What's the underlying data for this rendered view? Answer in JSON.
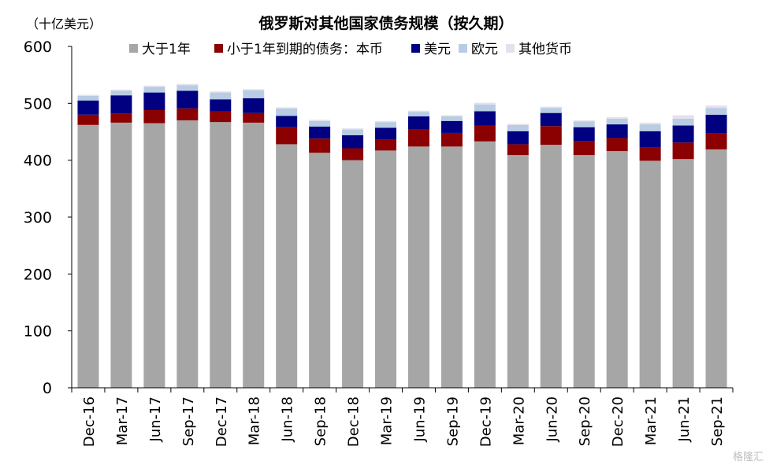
{
  "chart_data": {
    "type": "bar",
    "stacked": true,
    "title": "俄罗斯对其他国家债务规模（按久期）",
    "unit_label": "（十亿美元）",
    "ylim": [
      0,
      600
    ],
    "yticks": [
      0,
      100,
      200,
      300,
      400,
      500,
      600
    ],
    "grid": false,
    "legend_position": "top",
    "categories": [
      "Dec-16",
      "Mar-17",
      "Jun-17",
      "Sep-17",
      "Dec-17",
      "Mar-18",
      "Jun-18",
      "Sep-18",
      "Dec-18",
      "Mar-19",
      "Jun-19",
      "Sep-19",
      "Dec-19",
      "Mar-20",
      "Jun-20",
      "Sep-20",
      "Dec-20",
      "Mar-21",
      "Jun-21",
      "Sep-21"
    ],
    "series": [
      {
        "name": "大于1年",
        "color": "#a6a6a6",
        "values": [
          462,
          466,
          465,
          470,
          467,
          466,
          428,
          413,
          400,
          417,
          424,
          424,
          433,
          409,
          427,
          409,
          416,
          399,
          402,
          419
        ]
      },
      {
        "name": "小于1年到期的债务：本币",
        "color": "#8b0000",
        "values": [
          18,
          16,
          23,
          21,
          19,
          17,
          30,
          25,
          21,
          19,
          30,
          24,
          28,
          19,
          33,
          24,
          23,
          24,
          29,
          28
        ]
      },
      {
        "name": "美元",
        "color": "#000080",
        "values": [
          25,
          32,
          31,
          31,
          21,
          26,
          20,
          21,
          23,
          21,
          23,
          21,
          25,
          23,
          23,
          25,
          24,
          28,
          30,
          33
        ]
      },
      {
        "name": "欧元",
        "color": "#b8cce4",
        "values": [
          8,
          8,
          10,
          10,
          12,
          14,
          13,
          10,
          10,
          10,
          8,
          8,
          12,
          11,
          9,
          10,
          10,
          12,
          12,
          12
        ]
      },
      {
        "name": "其他货币",
        "color": "#e6e0ec",
        "values": [
          2,
          2,
          2,
          2,
          2,
          2,
          2,
          2,
          2,
          2,
          2,
          2,
          3,
          2,
          2,
          2,
          3,
          3,
          6,
          4
        ]
      }
    ]
  },
  "watermark": "格隆汇"
}
